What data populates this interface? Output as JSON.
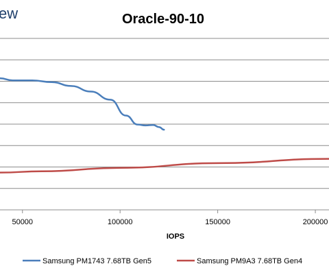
{
  "logo_text": "ew",
  "chart_data": {
    "type": "line",
    "title": "Oracle-90-10",
    "xlabel": "IOPS",
    "ylabel": "",
    "x_ticks": [
      {
        "value": 50000,
        "label": "50000"
      },
      {
        "value": 100000,
        "label": "100000"
      },
      {
        "value": 150000,
        "label": "150000"
      },
      {
        "value": 200000,
        "label": "200000"
      }
    ],
    "xlim": [
      38500,
      207000
    ],
    "ylim": [
      0,
      8
    ],
    "grid": true,
    "legend_position": "bottom",
    "series": [
      {
        "name": "Samsung PM1743 7.68TB Gen5",
        "color": "#4a7ebb",
        "points": [
          [
            38500,
            6.14
          ],
          [
            45000,
            6.04
          ],
          [
            55000,
            6.04
          ],
          [
            65000,
            5.96
          ],
          [
            75000,
            5.78
          ],
          [
            85000,
            5.52
          ],
          [
            95000,
            5.14
          ],
          [
            103000,
            4.4
          ],
          [
            109000,
            3.98
          ],
          [
            113000,
            3.94
          ],
          [
            117000,
            3.96
          ],
          [
            120000,
            3.86
          ],
          [
            122500,
            3.74
          ]
        ]
      },
      {
        "name": "Samsung PM9A3 7.68TB Gen4",
        "color": "#be4b48",
        "points": [
          [
            38500,
            1.74
          ],
          [
            60000,
            1.8
          ],
          [
            100000,
            1.96
          ],
          [
            150000,
            2.18
          ],
          [
            207000,
            2.38
          ]
        ]
      }
    ]
  }
}
